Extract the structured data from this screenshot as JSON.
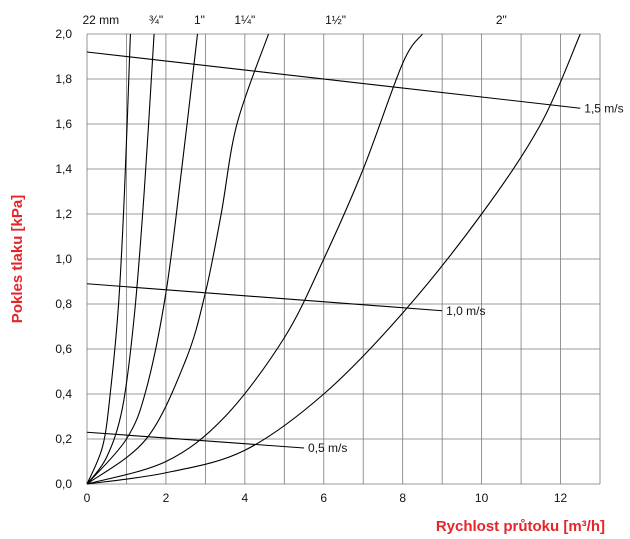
{
  "chart_data": {
    "type": "line",
    "xlabel": "Rychlost průtoku [m³/h]",
    "ylabel": "Pokles tlaku [kPa]",
    "xlim": [
      0,
      13
    ],
    "ylim": [
      0,
      2.0
    ],
    "grid": true,
    "x_ticks": [
      0,
      2,
      4,
      6,
      8,
      10,
      12
    ],
    "y_ticks": [
      "0,0",
      "0,2",
      "0,4",
      "0,6",
      "0,8",
      "1,0",
      "1,2",
      "1,4",
      "1,6",
      "1,8",
      "2,0"
    ],
    "series": [
      {
        "name": "22 mm",
        "points": [
          [
            0,
            0
          ],
          [
            0.4,
            0.17
          ],
          [
            0.6,
            0.42
          ],
          [
            0.8,
            0.8
          ],
          [
            0.95,
            1.3
          ],
          [
            1.1,
            2.0
          ]
        ]
      },
      {
        "name": "¾\"",
        "points": [
          [
            0,
            0
          ],
          [
            0.5,
            0.12
          ],
          [
            0.9,
            0.34
          ],
          [
            1.2,
            0.75
          ],
          [
            1.45,
            1.3
          ],
          [
            1.7,
            2.0
          ]
        ]
      },
      {
        "name": "1\"",
        "points": [
          [
            0,
            0
          ],
          [
            1.0,
            0.2
          ],
          [
            1.5,
            0.42
          ],
          [
            2.0,
            0.85
          ],
          [
            2.4,
            1.4
          ],
          [
            2.8,
            2.0
          ]
        ]
      },
      {
        "name": "1¼\"",
        "points": [
          [
            0,
            0
          ],
          [
            1.5,
            0.2
          ],
          [
            2.5,
            0.55
          ],
          [
            3.0,
            0.85
          ],
          [
            3.4,
            1.2
          ],
          [
            3.8,
            1.6
          ],
          [
            4.6,
            2.0
          ]
        ]
      },
      {
        "name": "1½\"",
        "points": [
          [
            0,
            0
          ],
          [
            2.0,
            0.1
          ],
          [
            3.5,
            0.3
          ],
          [
            5.0,
            0.65
          ],
          [
            6.0,
            1.0
          ],
          [
            7.0,
            1.4
          ],
          [
            8.0,
            1.87
          ],
          [
            8.5,
            2.0
          ]
        ]
      },
      {
        "name": "2\"",
        "points": [
          [
            0,
            0
          ],
          [
            2.0,
            0.05
          ],
          [
            4.0,
            0.15
          ],
          [
            6.0,
            0.4
          ],
          [
            8.0,
            0.76
          ],
          [
            10.0,
            1.2
          ],
          [
            11.5,
            1.6
          ],
          [
            12.5,
            2.0
          ]
        ]
      }
    ],
    "velocity_lines": [
      {
        "label": "1,5 m/s",
        "from": [
          0,
          1.92
        ],
        "to": [
          12.5,
          1.67
        ]
      },
      {
        "label": "1,0 m/s",
        "from": [
          0,
          0.89
        ],
        "to": [
          9.0,
          0.77
        ]
      },
      {
        "label": "0,5 m/s",
        "from": [
          0,
          0.23
        ],
        "to": [
          5.5,
          0.16
        ]
      }
    ],
    "top_labels": [
      "22 mm",
      "¾\"",
      "1\"",
      "1¼\"",
      "1½\"",
      "2\""
    ]
  }
}
